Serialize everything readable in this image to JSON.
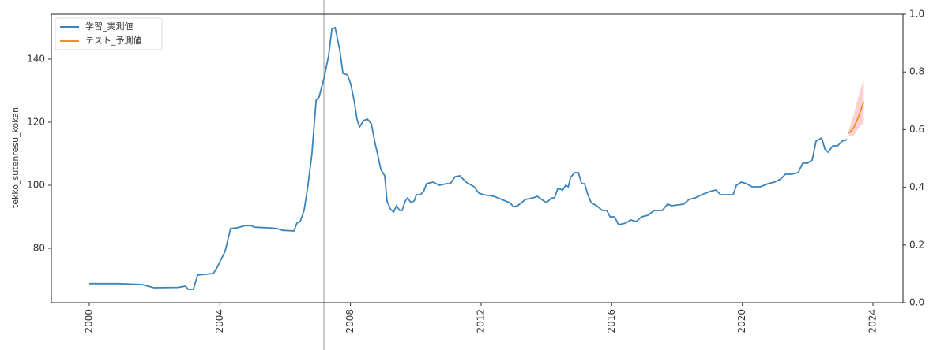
{
  "chart_data": {
    "type": "line",
    "y_label": "tekko_sutenresu_kokan",
    "legend": "upper left",
    "xlim": [
      1998.84,
      2024.92
    ],
    "xticks": [
      2000,
      2004,
      2008,
      2012,
      2016,
      2020,
      2024
    ],
    "ylim": [
      62.75,
      154.25
    ],
    "yticks": [
      80,
      100,
      120,
      140
    ],
    "y2lim": [
      0,
      1
    ],
    "y2ticks": [
      {
        "value": 0,
        "label": "0.0"
      },
      {
        "value": 0.2,
        "label": "0.2"
      },
      {
        "value": 0.4,
        "label": "0.4"
      },
      {
        "value": 0.6,
        "label": "0.6"
      },
      {
        "value": 0.8,
        "label": "0.8"
      },
      {
        "value": 1,
        "label": "1.0"
      }
    ],
    "series": [
      {
        "name": "学習_実測値",
        "color": "#3b84bb",
        "x": [
          2000.0,
          2000.9,
          2001.62,
          2001.98,
          2002.71,
          2002.95,
          2003.03,
          2003.19,
          2003.32,
          2003.8,
          2003.92,
          2004.16,
          2004.33,
          2004.53,
          2004.77,
          2004.96,
          2005.06,
          2005.49,
          2005.74,
          2005.93,
          2006.27,
          2006.36,
          2006.46,
          2006.58,
          2006.7,
          2006.82,
          2006.95,
          2007.04,
          2007.19,
          2007.33,
          2007.43,
          2007.53,
          2007.67,
          2007.77,
          2007.91,
          2008.01,
          2008.11,
          2008.2,
          2008.28,
          2008.4,
          2008.52,
          2008.64,
          2008.76,
          2008.83,
          2008.93,
          2009.05,
          2009.12,
          2009.22,
          2009.32,
          2009.41,
          2009.51,
          2009.58,
          2009.68,
          2009.75,
          2009.85,
          2009.95,
          2010.02,
          2010.14,
          2010.24,
          2010.33,
          2010.53,
          2010.72,
          2010.94,
          2011.06,
          2011.2,
          2011.35,
          2011.54,
          2011.79,
          2011.93,
          2012.08,
          2012.39,
          2012.63,
          2012.87,
          2013.0,
          2013.12,
          2013.36,
          2013.6,
          2013.72,
          2013.92,
          2014.01,
          2014.16,
          2014.25,
          2014.35,
          2014.5,
          2014.59,
          2014.67,
          2014.74,
          2014.86,
          2014.98,
          2015.08,
          2015.17,
          2015.27,
          2015.37,
          2015.54,
          2015.71,
          2015.85,
          2015.95,
          2016.09,
          2016.21,
          2016.43,
          2016.58,
          2016.75,
          2016.92,
          2017.11,
          2017.3,
          2017.55,
          2017.71,
          2017.84,
          2018.2,
          2018.37,
          2018.56,
          2018.76,
          2019.0,
          2019.19,
          2019.34,
          2019.72,
          2019.82,
          2019.97,
          2020.13,
          2020.3,
          2020.55,
          2020.79,
          2020.98,
          2021.18,
          2021.32,
          2021.51,
          2021.71,
          2021.85,
          2022.0,
          2022.14,
          2022.26,
          2022.43,
          2022.53,
          2022.63,
          2022.77,
          2022.92,
          2023.06,
          2023.21
        ],
        "values": [
          68.8,
          68.8,
          68.5,
          67.5,
          67.6,
          68,
          67,
          67,
          71.5,
          72,
          74,
          79,
          86.3,
          86.5,
          87.2,
          87.2,
          86.7,
          86.5,
          86.3,
          85.7,
          85.5,
          88,
          88.5,
          92,
          100,
          110,
          127,
          128,
          134,
          141,
          149.5,
          150,
          143,
          135.5,
          135,
          132,
          127,
          121,
          118.5,
          120.5,
          121,
          119.5,
          113,
          110,
          105,
          103,
          95,
          92.5,
          91.5,
          93.5,
          92,
          92,
          95,
          96,
          94.5,
          95,
          97,
          97,
          98,
          100.5,
          101,
          100,
          100.5,
          100.5,
          102.7,
          103,
          101,
          99.5,
          97.5,
          97,
          96.5,
          95.5,
          94.5,
          93.2,
          93.5,
          95.5,
          96,
          96.5,
          95,
          94.5,
          96,
          96,
          99,
          98.5,
          100,
          99.5,
          102.5,
          104,
          104,
          100.5,
          100.5,
          97,
          94.5,
          93.5,
          92,
          92,
          90,
          90,
          87.5,
          88,
          89,
          88.5,
          90,
          90.5,
          92,
          92,
          94,
          93.5,
          94,
          95.5,
          96,
          97,
          98,
          98.5,
          97,
          97,
          100,
          101,
          100.5,
          99.5,
          99.5,
          100.5,
          101,
          102,
          103.5,
          103.5,
          104,
          107,
          107,
          108,
          114,
          115,
          111.5,
          110.5,
          112.5,
          112.5,
          114,
          114.5
        ]
      },
      {
        "name": "テスト_予測値",
        "color": "#f28e2b",
        "x": [
          2023.26,
          2023.4,
          2023.55,
          2023.72
        ],
        "values": [
          116.5,
          118,
          121.5,
          126.5
        ]
      }
    ],
    "band": {
      "color": "#f8b4b4",
      "x": [
        2023.26,
        2023.4,
        2023.55,
        2023.72
      ],
      "lower": [
        115.5,
        115.5,
        118,
        120
      ],
      "upper": [
        117.5,
        122,
        128,
        134
      ]
    }
  }
}
